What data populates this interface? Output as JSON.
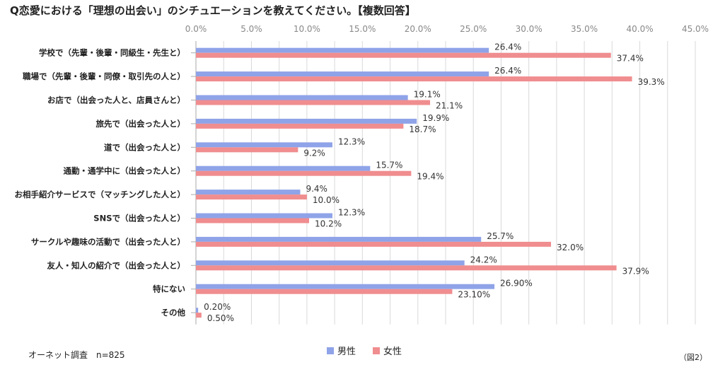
{
  "title": "Q恋愛における「理想の出会い」のシチュエーションを教えてください。【複数回答】",
  "source": "オーネット調査　n=825",
  "figure_label": "（図2）",
  "colors": {
    "male": "#8fa3e8",
    "female": "#f08d8f",
    "grid": "#d9d9d9",
    "axis": "#aaaaaa"
  },
  "chart_data": {
    "type": "bar",
    "orientation": "horizontal",
    "xlim": [
      0,
      45
    ],
    "ticks": [
      "0.0%",
      "5.0%",
      "10.0%",
      "15.0%",
      "20.0%",
      "25.0%",
      "30.0%",
      "35.0%",
      "40.0%",
      "45.0%"
    ],
    "tick_values": [
      0,
      5,
      10,
      15,
      20,
      25,
      30,
      35,
      40,
      45
    ],
    "grid": true,
    "legend_position": "bottom",
    "categories": [
      "学校で（先輩・後輩・同級生・先生と）",
      "職場で（先輩・後輩・同僚・取引先の人と）",
      "お店で（出会った人と、店員さんと）",
      "旅先で（出会った人と）",
      "道で（出会った人と）",
      "通勤・通学中に（出会った人と）",
      "お相手紹介サービスで（マッチングした人と）",
      "SNSで（出会った人と）",
      "サークルや趣味の活動で（出会った人と）",
      "友人・知人の紹介で（出会った人と）",
      "特にない",
      "その他"
    ],
    "series": [
      {
        "name": "男性",
        "values": [
          26.4,
          26.4,
          19.1,
          19.9,
          12.3,
          15.7,
          9.4,
          12.3,
          25.7,
          24.2,
          26.9,
          0.2
        ],
        "labels": [
          "26.4%",
          "26.4%",
          "19.1%",
          "19.9%",
          "12.3%",
          "15.7%",
          "9.4%",
          "12.3%",
          "25.7%",
          "24.2%",
          "26.90%",
          "0.20%"
        ]
      },
      {
        "name": "女性",
        "values": [
          37.4,
          39.3,
          21.1,
          18.7,
          9.2,
          19.4,
          10.0,
          10.2,
          32.0,
          37.9,
          23.1,
          0.5
        ],
        "labels": [
          "37.4%",
          "39.3%",
          "21.1%",
          "18.7%",
          "9.2%",
          "19.4%",
          "10.0%",
          "10.2%",
          "32.0%",
          "37.9%",
          "23.10%",
          "0.50%"
        ]
      }
    ]
  }
}
